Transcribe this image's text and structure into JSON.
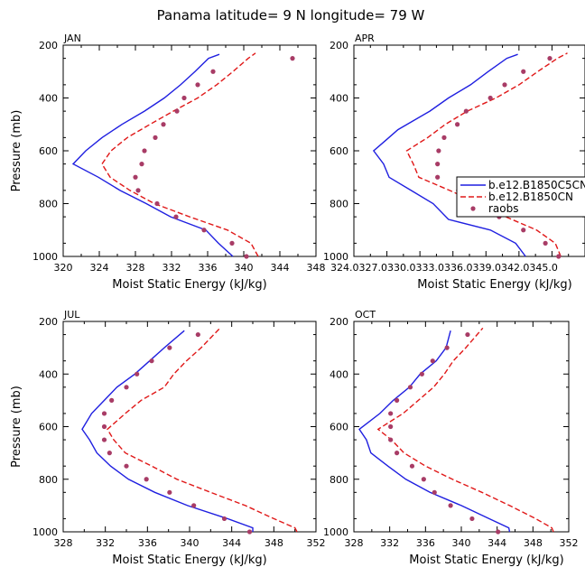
{
  "figure": {
    "title": "Panama   latitude=  9 N longitude=  79 W"
  },
  "legend": {
    "items": [
      "b.e12.B1850C5CN",
      "b.e12.B1850CN",
      "raobs"
    ]
  },
  "colors": {
    "series1": "#1f1fe0",
    "series2": "#e01818",
    "points": "#a83c66"
  },
  "chart_data": [
    {
      "type": "line",
      "month": "JAN",
      "xlabel": "Moist Static Energy (kJ/kg)",
      "ylabel": "Pressure (mb)",
      "xlim": [
        320,
        348
      ],
      "ylim": [
        1000,
        200
      ],
      "xticks": [
        320,
        324,
        328,
        332,
        336,
        340,
        344,
        348
      ],
      "xtick_labels": [
        "320",
        "324",
        "328",
        "332",
        "336",
        "340",
        "344",
        "348"
      ],
      "yticks": [
        200,
        400,
        600,
        800,
        1000
      ],
      "ytick_labels": [
        "200",
        "400",
        "600",
        "800",
        "1000"
      ],
      "series": [
        {
          "name": "b.e12.B1850C5CN",
          "style": "solid",
          "pressure": [
            1000,
            950,
            900,
            850,
            800,
            750,
            700,
            650,
            600,
            550,
            500,
            450,
            400,
            350,
            300,
            250,
            235
          ],
          "values": [
            338.8,
            337.2,
            335.8,
            331.9,
            329.2,
            326.3,
            323.9,
            321.1,
            322.5,
            324.3,
            326.5,
            329.0,
            331.2,
            333.0,
            334.6,
            336.1,
            337.3
          ]
        },
        {
          "name": "b.e12.B1850CN",
          "style": "dashed",
          "pressure": [
            1000,
            950,
            900,
            850,
            800,
            750,
            700,
            650,
            600,
            550,
            500,
            450,
            400,
            350,
            300,
            250,
            230
          ],
          "values": [
            341.6,
            340.8,
            338.2,
            334.0,
            330.1,
            327.4,
            325.2,
            324.3,
            325.3,
            327.1,
            329.6,
            332.2,
            334.9,
            337.0,
            338.8,
            340.5,
            341.3
          ]
        },
        {
          "name": "raobs",
          "style": "points",
          "pressure": [
            1000,
            950,
            900,
            850,
            800,
            750,
            700,
            650,
            600,
            550,
            500,
            450,
            400,
            350,
            300,
            250
          ],
          "values": [
            340.3,
            338.7,
            335.6,
            332.5,
            330.4,
            328.3,
            328.0,
            328.7,
            329.0,
            330.2,
            331.1,
            332.6,
            333.4,
            334.9,
            336.6,
            345.4
          ]
        }
      ]
    },
    {
      "type": "line",
      "month": "APR",
      "xlabel": "Moist Static Energy (kJ/kg)",
      "ylabel": "",
      "xlim": [
        324.0,
        345.0
      ],
      "ylim": [
        1000,
        200
      ],
      "xticks": [
        324.0,
        327.0,
        330.0,
        333.0,
        336.0,
        339.0,
        342.0,
        345.0
      ],
      "xtick_labels": [
        "324.0",
        "327.0",
        "330.0",
        "333.0",
        "336.0",
        "339.0",
        "342.0",
        "345.0"
      ],
      "xtick_label_text": "324.0327.0330.0333.0336.0339.0342.0345.0",
      "yticks": [
        200,
        400,
        600,
        800,
        1000
      ],
      "ytick_labels": [
        "200",
        "400",
        "600",
        "800",
        "1000"
      ],
      "series": [
        {
          "name": "b.e12.B1850C5CN",
          "style": "solid",
          "pressure": [
            1000,
            950,
            900,
            860,
            800,
            750,
            700,
            650,
            600,
            560,
            520,
            450,
            400,
            350,
            300,
            250,
            235
          ],
          "values": [
            339.6,
            338.7,
            336.4,
            332.6,
            331.2,
            329.2,
            327.2,
            326.7,
            325.8,
            326.9,
            328.0,
            330.9,
            332.6,
            334.6,
            336.2,
            337.9,
            338.9
          ]
        },
        {
          "name": "b.e12.B1850CN",
          "style": "dashed",
          "pressure": [
            1000,
            950,
            900,
            850,
            800,
            750,
            700,
            650,
            600,
            550,
            500,
            450,
            400,
            350,
            300,
            250,
            230
          ],
          "values": [
            342.8,
            342.3,
            340.6,
            337.8,
            335.4,
            332.7,
            329.9,
            329.4,
            328.8,
            330.7,
            332.3,
            334.3,
            336.9,
            339.0,
            340.7,
            342.5,
            343.4
          ]
        },
        {
          "name": "raobs",
          "style": "points",
          "pressure": [
            1000,
            950,
            900,
            850,
            825,
            800,
            750,
            700,
            650,
            600,
            550,
            500,
            450,
            400,
            350,
            300,
            250
          ],
          "values": [
            342.6,
            341.4,
            339.4,
            337.2,
            337.7,
            336.8,
            333.5,
            331.6,
            331.6,
            331.7,
            332.2,
            333.4,
            334.2,
            336.4,
            337.7,
            339.4,
            341.8
          ]
        }
      ]
    },
    {
      "type": "line",
      "month": "JUL",
      "xlabel": "Moist Static Energy (kJ/kg)",
      "ylabel": "Pressure (mb)",
      "xlim": [
        328,
        352
      ],
      "ylim": [
        1000,
        200
      ],
      "xticks": [
        328,
        332,
        336,
        340,
        344,
        348,
        352
      ],
      "xtick_labels": [
        "328",
        "332",
        "336",
        "340",
        "344",
        "348",
        "352"
      ],
      "yticks": [
        200,
        400,
        600,
        800,
        1000
      ],
      "ytick_labels": [
        "200",
        "400",
        "600",
        "800",
        "1000"
      ],
      "series": [
        {
          "name": "b.e12.B1850C5CN",
          "style": "solid",
          "pressure": [
            1000,
            985,
            950,
            900,
            850,
            800,
            750,
            700,
            650,
            610,
            550,
            500,
            450,
            400,
            350,
            300,
            235
          ],
          "values": [
            346.0,
            346.0,
            343.6,
            339.8,
            336.7,
            334.2,
            332.5,
            331.2,
            330.5,
            329.8,
            330.7,
            331.9,
            333.1,
            334.8,
            336.2,
            337.6,
            339.5
          ]
        },
        {
          "name": "b.e12.B1850CN",
          "style": "dashed",
          "pressure": [
            1000,
            985,
            950,
            900,
            850,
            800,
            750,
            700,
            650,
            610,
            550,
            500,
            450,
            400,
            350,
            300,
            225
          ],
          "values": [
            350.2,
            350.0,
            348.0,
            345.3,
            342.0,
            338.8,
            336.4,
            333.9,
            332.8,
            332.2,
            333.9,
            335.4,
            337.6,
            338.5,
            339.7,
            341.1,
            342.9
          ]
        },
        {
          "name": "raobs",
          "style": "points",
          "pressure": [
            1000,
            950,
            900,
            850,
            800,
            750,
            700,
            650,
            600,
            550,
            500,
            450,
            400,
            350,
            300,
            250
          ],
          "values": [
            345.7,
            343.3,
            340.4,
            338.1,
            335.9,
            334.0,
            332.4,
            331.9,
            331.9,
            331.9,
            332.6,
            334.0,
            335.0,
            336.4,
            338.1,
            340.8
          ]
        }
      ]
    },
    {
      "type": "line",
      "month": "OCT",
      "xlabel": "Moist Static Energy (kJ/kg)",
      "ylabel": "",
      "xlim": [
        328,
        352
      ],
      "ylim": [
        1000,
        200
      ],
      "xticks": [
        328,
        332,
        336,
        340,
        344,
        348,
        352
      ],
      "xtick_labels": [
        "328",
        "332",
        "336",
        "340",
        "344",
        "348",
        "352"
      ],
      "yticks": [
        200,
        400,
        600,
        800,
        1000
      ],
      "ytick_labels": [
        "200",
        "400",
        "600",
        "800",
        "1000"
      ],
      "series": [
        {
          "name": "b.e12.B1850C5CN",
          "style": "solid",
          "pressure": [
            1000,
            985,
            950,
            900,
            850,
            800,
            750,
            700,
            650,
            610,
            550,
            500,
            450,
            400,
            350,
            300,
            235
          ],
          "values": [
            345.4,
            345.3,
            343.1,
            340.0,
            336.5,
            333.8,
            331.8,
            329.9,
            329.4,
            328.6,
            330.9,
            332.4,
            334.2,
            335.4,
            337.2,
            338.3,
            338.8
          ]
        },
        {
          "name": "b.e12.B1850CN",
          "style": "dashed",
          "pressure": [
            1000,
            985,
            950,
            900,
            850,
            800,
            750,
            700,
            650,
            610,
            550,
            500,
            450,
            400,
            350,
            300,
            225
          ],
          "values": [
            350.3,
            350.1,
            348.3,
            345.4,
            342.3,
            339.0,
            336.0,
            333.6,
            332.2,
            330.7,
            333.5,
            335.2,
            336.9,
            338.1,
            339.1,
            340.5,
            342.4
          ]
        },
        {
          "name": "raobs",
          "style": "points",
          "pressure": [
            1000,
            950,
            900,
            850,
            800,
            750,
            700,
            650,
            600,
            550,
            500,
            450,
            400,
            350,
            300,
            250
          ],
          "values": [
            344.1,
            341.2,
            338.8,
            337.0,
            335.8,
            334.5,
            332.8,
            332.1,
            332.1,
            332.1,
            332.8,
            334.3,
            335.6,
            336.8,
            338.4,
            340.7
          ]
        }
      ]
    }
  ]
}
